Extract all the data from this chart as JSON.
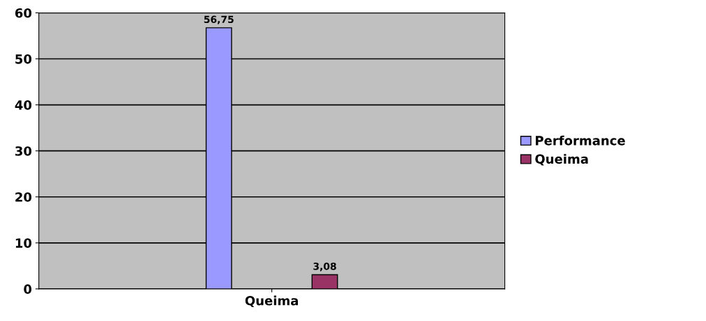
{
  "chart_data": {
    "type": "bar",
    "categories": [
      "Queima"
    ],
    "series": [
      {
        "name": "Performance",
        "color": "#9999ff",
        "values": [
          56.75
        ],
        "value_labels": [
          "56,75"
        ]
      },
      {
        "name": "Queima",
        "color": "#993366",
        "values": [
          3.08
        ],
        "value_labels": [
          "3,08"
        ]
      }
    ],
    "ylim": [
      0,
      60
    ],
    "yticks": [
      0,
      10,
      20,
      30,
      40,
      50,
      60
    ],
    "grid": "y",
    "legend": "right"
  }
}
